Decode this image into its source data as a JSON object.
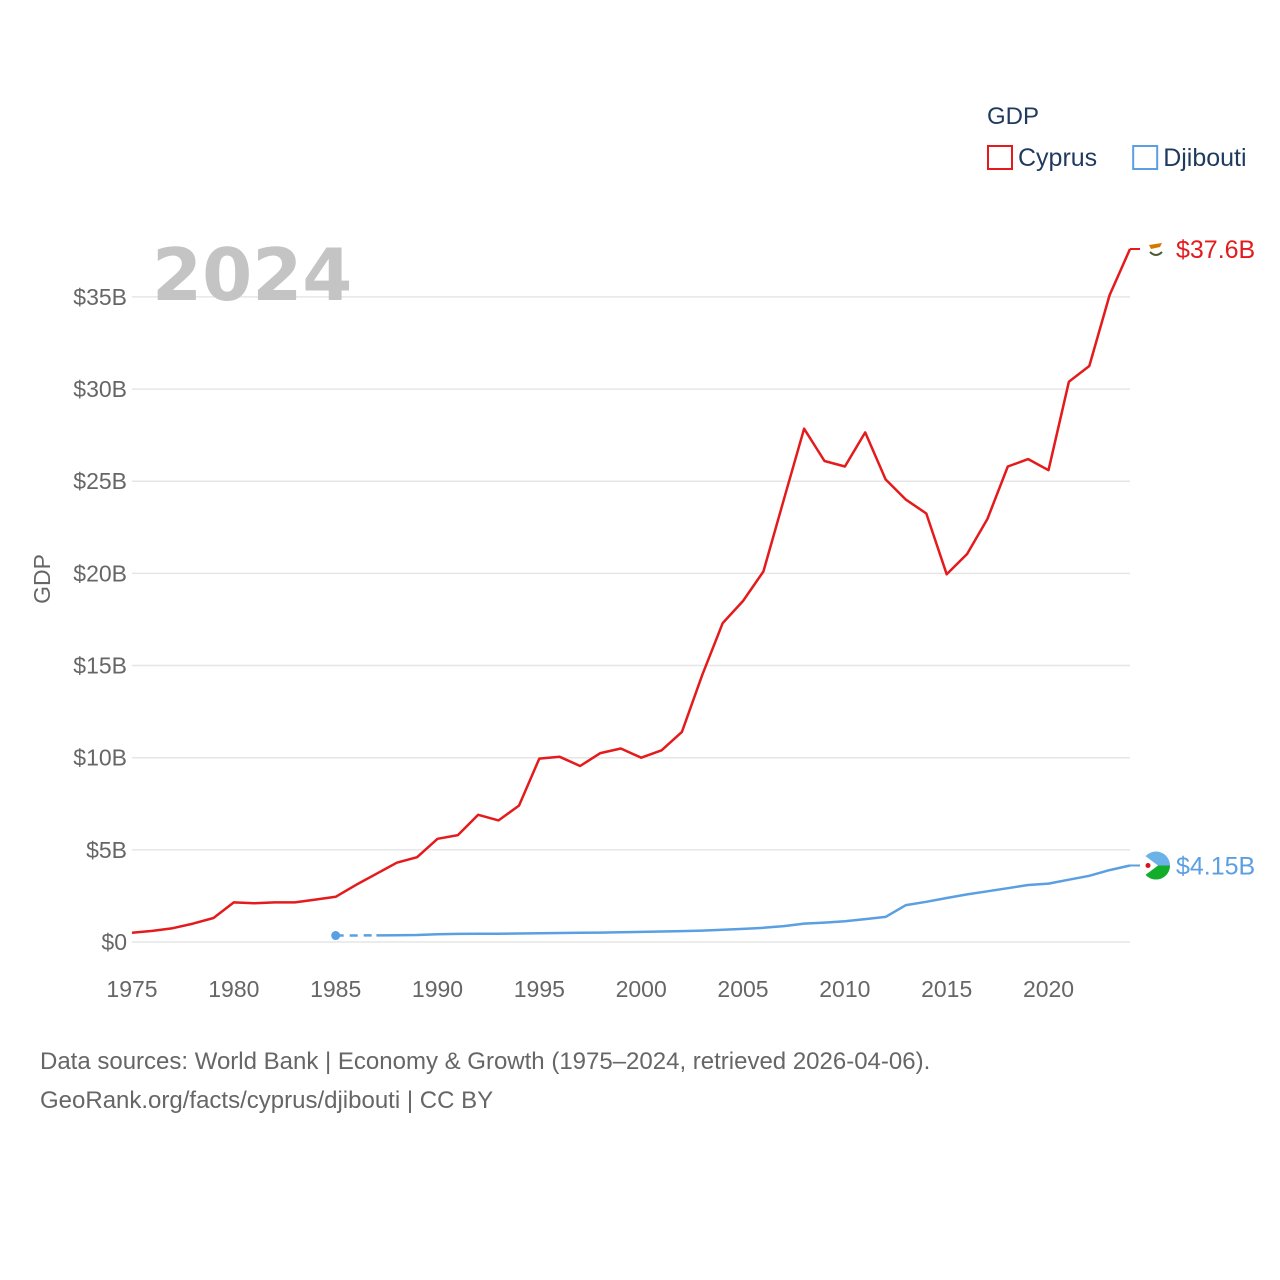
{
  "chart_data": {
    "type": "line",
    "title": "",
    "year_label": "2024",
    "xlabel": "",
    "ylabel": "GDP",
    "xlim": [
      1975,
      2024
    ],
    "ylim": [
      0,
      37.6
    ],
    "x_ticks": [
      1975,
      1980,
      1985,
      1990,
      1995,
      2000,
      2005,
      2010,
      2015,
      2020
    ],
    "y_ticks": [
      {
        "value": 0,
        "label": "$0"
      },
      {
        "value": 5,
        "label": "$5B"
      },
      {
        "value": 10,
        "label": "$10B"
      },
      {
        "value": 15,
        "label": "$15B"
      },
      {
        "value": 20,
        "label": "$20B"
      },
      {
        "value": 25,
        "label": "$25B"
      },
      {
        "value": 30,
        "label": "$30B"
      },
      {
        "value": 35,
        "label": "$35B"
      }
    ],
    "grid": true,
    "legend": {
      "title": "GDP",
      "placement": "top-right"
    },
    "units": "billion USD",
    "series": [
      {
        "name": "Cyprus",
        "color": "#e41a1c",
        "end_label": "$37.6B",
        "x": [
          1975,
          1976,
          1977,
          1978,
          1979,
          1980,
          1981,
          1982,
          1983,
          1984,
          1985,
          1986,
          1987,
          1988,
          1989,
          1990,
          1991,
          1992,
          1993,
          1994,
          1995,
          1996,
          1997,
          1998,
          1999,
          2000,
          2001,
          2002,
          2003,
          2004,
          2005,
          2006,
          2007,
          2008,
          2009,
          2010,
          2011,
          2012,
          2013,
          2014,
          2015,
          2016,
          2017,
          2018,
          2019,
          2020,
          2021,
          2022,
          2023,
          2024
        ],
        "values": [
          0.5,
          0.6,
          0.75,
          1.0,
          1.3,
          2.15,
          2.1,
          2.15,
          2.15,
          2.3,
          2.45,
          3.1,
          3.7,
          4.3,
          4.6,
          5.6,
          5.8,
          6.9,
          6.6,
          7.4,
          9.95,
          10.05,
          9.55,
          10.25,
          10.5,
          10.0,
          10.4,
          11.4,
          14.5,
          17.3,
          18.5,
          20.1,
          24.0,
          27.85,
          26.1,
          25.8,
          27.65,
          25.1,
          24.0,
          23.25,
          19.95,
          21.05,
          22.95,
          25.8,
          26.2,
          25.6,
          30.4,
          31.25,
          35.1,
          37.6
        ]
      },
      {
        "name": "Djibouti",
        "color": "#5b9fe3",
        "end_label": "$4.15B",
        "gap": {
          "from": 1985,
          "to": 1987,
          "style": "dashed"
        },
        "x": [
          1985,
          1987,
          1988,
          1989,
          1990,
          1991,
          1992,
          1993,
          1994,
          1995,
          1996,
          1997,
          1998,
          1999,
          2000,
          2001,
          2002,
          2003,
          2004,
          2005,
          2006,
          2007,
          2008,
          2009,
          2010,
          2011,
          2012,
          2013,
          2014,
          2015,
          2016,
          2017,
          2018,
          2019,
          2020,
          2021,
          2022,
          2023,
          2024
        ],
        "values": [
          0.35,
          0.36,
          0.37,
          0.38,
          0.42,
          0.44,
          0.45,
          0.45,
          0.46,
          0.48,
          0.49,
          0.5,
          0.51,
          0.53,
          0.55,
          0.57,
          0.59,
          0.62,
          0.66,
          0.71,
          0.77,
          0.86,
          1.0,
          1.05,
          1.13,
          1.24,
          1.36,
          2.0,
          2.18,
          2.39,
          2.58,
          2.75,
          2.92,
          3.09,
          3.17,
          3.38,
          3.59,
          3.9,
          4.15
        ]
      }
    ]
  },
  "source": {
    "line1": "Data sources: World Bank | Economy & Growth (1975–2024, retrieved 2026-04-06).",
    "line2": "GeoRank.org/facts/cyprus/djibouti | CC BY"
  }
}
